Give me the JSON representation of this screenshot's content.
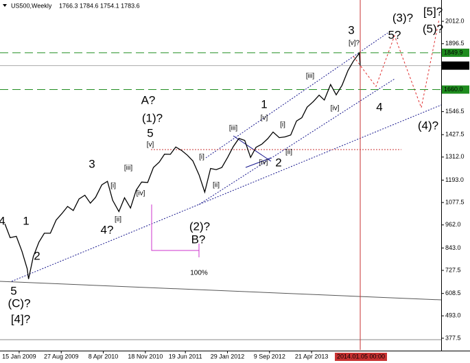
{
  "chart_data": {
    "type": "line",
    "title": "US500,Weekly",
    "ohlc": "1766.3 1784.6 1754.1 1783.6",
    "color": "#000000",
    "x": [
      "2008-10-31",
      "2008-11-28",
      "2008-12-31",
      "2009-01-30",
      "2009-02-27",
      "2009-03-06",
      "2009-03-31",
      "2009-04-30",
      "2009-05-29",
      "2009-06-30",
      "2009-07-31",
      "2009-08-31",
      "2009-09-30",
      "2009-10-30",
      "2009-11-30",
      "2009-12-31",
      "2010-01-29",
      "2010-02-26",
      "2010-03-31",
      "2010-04-30",
      "2010-05-28",
      "2010-06-30",
      "2010-07-30",
      "2010-08-31",
      "2010-09-30",
      "2010-10-29",
      "2010-11-30",
      "2010-12-31",
      "2011-01-31",
      "2011-02-28",
      "2011-03-31",
      "2011-04-29",
      "2011-05-31",
      "2011-06-30",
      "2011-07-29",
      "2011-08-31",
      "2011-09-30",
      "2011-10-31",
      "2011-11-30",
      "2011-12-30",
      "2012-01-31",
      "2012-02-29",
      "2012-03-30",
      "2012-04-30",
      "2012-05-31",
      "2012-06-29",
      "2012-07-31",
      "2012-08-31",
      "2012-09-28",
      "2012-10-31",
      "2012-11-30",
      "2012-12-31",
      "2013-01-31",
      "2013-02-28",
      "2013-03-28",
      "2013-04-30",
      "2013-05-31",
      "2013-06-28",
      "2013-07-31",
      "2013-08-30",
      "2013-09-30",
      "2013-10-31",
      "2013-11-29",
      "2013-12-31",
      "2014-01-05"
    ],
    "values": [
      968,
      896,
      903,
      826,
      735,
      683,
      798,
      873,
      919,
      919,
      987,
      1021,
      1057,
      1036,
      1096,
      1115,
      1074,
      1104,
      1169,
      1187,
      1089,
      1031,
      1102,
      1049,
      1141,
      1183,
      1181,
      1258,
      1286,
      1327,
      1326,
      1364,
      1345,
      1321,
      1292,
      1219,
      1131,
      1253,
      1247,
      1258,
      1312,
      1366,
      1408,
      1398,
      1310,
      1362,
      1379,
      1407,
      1441,
      1412,
      1416,
      1426,
      1498,
      1515,
      1569,
      1598,
      1631,
      1606,
      1686,
      1633,
      1682,
      1757,
      1806,
      1848,
      1783.6
    ],
    "xlim": [
      "2008-10-05",
      "2015-03-12"
    ],
    "ylim": [
      317,
      2122
    ],
    "yticks": [
      {
        "value": 2012,
        "label": "2012.0"
      },
      1896.5,
      1546.5,
      1427.5,
      {
        "value": 1312,
        "label": "1312.0"
      },
      {
        "value": 1193,
        "label": "1193.0"
      },
      1077.5,
      {
        "value": 962,
        "label": "962.0"
      },
      {
        "value": 843,
        "label": "843.0"
      },
      727.5,
      608.5,
      {
        "value": 493,
        "label": "493.0"
      },
      377.5
    ],
    "xticks": [
      {
        "value": "2009-01-15",
        "label": "15 Jan 2009"
      },
      {
        "value": "2009-08-27",
        "label": "27 Aug 2009"
      },
      {
        "value": "2010-04-08",
        "label": "8 Apr 2010"
      },
      {
        "value": "2010-11-18",
        "label": "18 Nov 2010"
      },
      {
        "value": "2011-06-19",
        "label": "19 Jun 2011"
      },
      {
        "value": "2012-01-29",
        "label": "29 Jan 2012"
      },
      {
        "value": "2012-09-09",
        "label": "9 Sep 2012"
      },
      {
        "value": "2013-04-21",
        "label": "21 Apr 2013"
      }
    ],
    "cursor": {
      "value": "2014-01-05",
      "label": "2014.01.05 00:00"
    },
    "levels": [
      1849.9,
      {
        "value": 1660,
        "label": "1660.0"
      }
    ],
    "annotations": [
      {
        "text": "4",
        "color": "#8b0000"
      },
      {
        "text": "1",
        "color": "#8b0000"
      },
      {
        "text": "2",
        "color": "#8b0000"
      },
      {
        "text": "5",
        "color": "#8b0000"
      },
      {
        "text": "(C)?",
        "color": "#14148c"
      },
      {
        "text": "[4]?",
        "color": "#1e8c1e"
      },
      {
        "text": "3",
        "color": "#8b0000"
      },
      {
        "text": "[i]",
        "color": "#1e8c1e"
      },
      {
        "text": "[ii]",
        "color": "#1e8c1e"
      },
      {
        "text": "[iii]",
        "color": "#1e8c1e"
      },
      {
        "text": "[iv]",
        "color": "#1e8c1e"
      },
      {
        "text": "4?",
        "color": "#8b0000"
      },
      {
        "text": "[v]",
        "color": "#1e8c1e"
      },
      {
        "text": "5",
        "color": "#8b0000"
      },
      {
        "text": "(1)?",
        "color": "#14148c"
      },
      {
        "text": "A?",
        "color": "#808080"
      },
      {
        "text": "[i]",
        "color": "#1e8c1e"
      },
      {
        "text": "[ii]",
        "color": "#1e8c1e"
      },
      {
        "text": "(2)?",
        "color": "#14148c"
      },
      {
        "text": "B?",
        "color": "#808080"
      },
      {
        "text": "100%",
        "color": "#cc33cc"
      },
      {
        "text": "[iii]",
        "color": "#1e8c1e"
      },
      {
        "text": "1",
        "color": "#8b0000"
      },
      {
        "text": "[v]",
        "color": "#1e8c1e"
      },
      {
        "text": "[iv]",
        "color": "#1e8c1e"
      },
      {
        "text": "2",
        "color": "#8b0000"
      },
      {
        "text": "[i]",
        "color": "#1e8c1e"
      },
      {
        "text": "[ii]",
        "color": "#1e8c1e"
      },
      {
        "text": "[iii]",
        "color": "#1e8c1e"
      },
      {
        "text": "[iv]",
        "color": "#1e8c1e"
      },
      {
        "text": "[v]?",
        "color": "#1e8c1e"
      },
      {
        "text": "3",
        "color": "#8b0000"
      },
      {
        "text": "4",
        "color": "#8b0000"
      },
      {
        "text": "5?",
        "color": "#8b0000"
      },
      {
        "text": "(3)?",
        "color": "#14148c"
      },
      {
        "text": "(4)?",
        "color": "#14148c"
      },
      {
        "text": "(5)?",
        "color": "#14148c"
      },
      {
        "text": "[5]?",
        "color": "#1e8c1e"
      }
    ]
  }
}
